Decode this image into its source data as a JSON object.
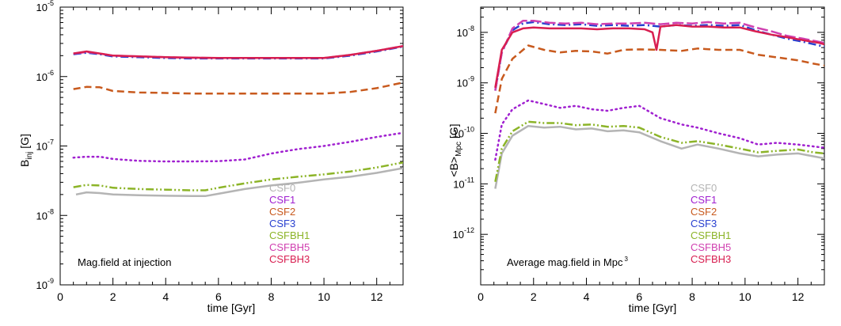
{
  "chart_data": [
    {
      "type": "line",
      "annotation": "Mag.field at injection",
      "xlabel": "time [Gyr]",
      "ylabel_main": "B",
      "ylabel_sub": "inj",
      "ylabel_unit": "[G]",
      "xlim": [
        0,
        13
      ],
      "ylim_log10": [
        -9,
        -5
      ],
      "xticks": [
        0,
        2,
        4,
        6,
        8,
        10,
        12
      ],
      "ytick_exponents": [
        -9,
        -8,
        -7,
        -6,
        -5
      ],
      "series": [
        {
          "name": "CSF0",
          "color": "#b4b4b4",
          "dash": "solid",
          "x": [
            0.6,
            1.0,
            1.5,
            2.0,
            3.0,
            4.0,
            5.0,
            5.5,
            6.0,
            7.0,
            8.0,
            9.0,
            10.0,
            11.0,
            12.0,
            13.0
          ],
          "y": [
            2e-08,
            2.15e-08,
            2.1e-08,
            2e-08,
            1.95e-08,
            1.92e-08,
            1.9e-08,
            1.9e-08,
            2.05e-08,
            2.4e-08,
            2.7e-08,
            2.95e-08,
            3.3e-08,
            3.6e-08,
            4.1e-08,
            4.8e-08
          ]
        },
        {
          "name": "CSF1",
          "color": "#a020d0",
          "dash": "dot",
          "x": [
            0.5,
            1.0,
            1.5,
            2.0,
            3.0,
            4.0,
            5.0,
            6.0,
            7.0,
            8.0,
            9.0,
            10.0,
            11.0,
            12.0,
            13.0
          ],
          "y": [
            6.8e-08,
            7e-08,
            7e-08,
            6.5e-08,
            6.1e-08,
            6e-08,
            6e-08,
            6.05e-08,
            6.4e-08,
            7.8e-08,
            9e-08,
            1e-07,
            1.15e-07,
            1.35e-07,
            1.55e-07
          ]
        },
        {
          "name": "CSF2",
          "color": "#c85a1e",
          "dash": "dash",
          "x": [
            0.5,
            1.0,
            1.5,
            2.0,
            3.0,
            4.0,
            5.0,
            6.0,
            7.0,
            8.0,
            9.0,
            10.0,
            11.0,
            12.0,
            13.0
          ],
          "y": [
            6.6e-07,
            7.1e-07,
            7e-07,
            6.2e-07,
            5.9e-07,
            5.8e-07,
            5.7e-07,
            5.7e-07,
            5.7e-07,
            5.7e-07,
            5.7e-07,
            5.7e-07,
            6e-07,
            6.8e-07,
            8.2e-07
          ]
        },
        {
          "name": "CSF3",
          "color": "#2840d0",
          "dash": "dashdot",
          "x": [
            0.5,
            1.0,
            1.5,
            2.0,
            3.0,
            4.0,
            5.0,
            6.0,
            7.0,
            8.0,
            9.0,
            10.0,
            11.0,
            12.0,
            13.0
          ],
          "y": [
            2.1e-06,
            2.2e-06,
            2.1e-06,
            1.95e-06,
            1.9e-06,
            1.85e-06,
            1.82e-06,
            1.82e-06,
            1.82e-06,
            1.82e-06,
            1.82e-06,
            1.82e-06,
            2e-06,
            2.3e-06,
            2.7e-06
          ]
        },
        {
          "name": "CSFBH1",
          "color": "#8cb428",
          "dash": "dashdotdot",
          "x": [
            0.5,
            1.0,
            1.5,
            2.0,
            3.0,
            4.0,
            5.0,
            5.5,
            6.0,
            7.0,
            8.0,
            9.0,
            10.0,
            11.0,
            12.0,
            13.0
          ],
          "y": [
            2.55e-08,
            2.75e-08,
            2.7e-08,
            2.5e-08,
            2.4e-08,
            2.35e-08,
            2.3e-08,
            2.3e-08,
            2.5e-08,
            2.9e-08,
            3.3e-08,
            3.6e-08,
            3.9e-08,
            4.3e-08,
            4.9e-08,
            5.8e-08
          ]
        },
        {
          "name": "CSFBH5",
          "color": "#d040b0",
          "dash": "longdash",
          "x": [
            0.5,
            1.0,
            1.5,
            2.0,
            3.0,
            4.0,
            5.0,
            6.0,
            7.0,
            8.0,
            9.0,
            10.0,
            11.0,
            12.0,
            13.0
          ],
          "y": [
            2.15e-06,
            2.25e-06,
            2.15e-06,
            2e-06,
            1.95e-06,
            1.9e-06,
            1.87e-06,
            1.85e-06,
            1.85e-06,
            1.85e-06,
            1.85e-06,
            1.85e-06,
            2.05e-06,
            2.35e-06,
            2.75e-06
          ]
        },
        {
          "name": "CSFBH3",
          "color": "#d81e50",
          "dash": "solid",
          "x": [
            0.5,
            1.0,
            1.5,
            2.0,
            3.0,
            4.0,
            5.0,
            6.0,
            7.0,
            8.0,
            9.0,
            10.0,
            11.0,
            12.0,
            13.0
          ],
          "y": [
            2.15e-06,
            2.3e-06,
            2.15e-06,
            2e-06,
            1.95e-06,
            1.9e-06,
            1.87e-06,
            1.85e-06,
            1.85e-06,
            1.85e-06,
            1.85e-06,
            1.85e-06,
            2.05e-06,
            2.35e-06,
            2.75e-06
          ]
        }
      ]
    },
    {
      "type": "line",
      "annotation": "Average mag.field in Mpc",
      "annotation_sup": "3",
      "xlabel": "time [Gyr]",
      "ylabel_main": "<B>",
      "ylabel_sub": "Mpc",
      "ylabel_unit": "[G]",
      "xlim": [
        0,
        13
      ],
      "ylim_log10": [
        -13,
        -7.5
      ],
      "xticks": [
        0,
        2,
        4,
        6,
        8,
        10,
        12
      ],
      "ytick_exponents": [
        -12,
        -11,
        -10,
        -9,
        -8
      ],
      "series": [
        {
          "name": "CSF0",
          "color": "#b4b4b4",
          "dash": "solid",
          "x": [
            0.55,
            0.8,
            1.2,
            1.8,
            2.4,
            3.0,
            3.6,
            4.2,
            4.8,
            5.4,
            6.0,
            6.8,
            7.6,
            8.2,
            9.0,
            9.8,
            10.5,
            11.2,
            12.0,
            12.6,
            13.0
          ],
          "y": [
            8e-12,
            4e-11,
            9e-11,
            1.4e-10,
            1.3e-10,
            1.35e-10,
            1.2e-10,
            1.25e-10,
            1.1e-10,
            1.15e-10,
            1.05e-10,
            7e-11,
            5e-11,
            6e-11,
            5e-11,
            4e-11,
            3.5e-11,
            3.8e-11,
            4e-11,
            3.5e-11,
            3.2e-11
          ]
        },
        {
          "name": "CSF1",
          "color": "#a020d0",
          "dash": "dot",
          "x": [
            0.55,
            0.8,
            1.2,
            1.8,
            2.4,
            3.0,
            3.6,
            4.2,
            4.8,
            5.4,
            6.0,
            6.8,
            7.6,
            8.2,
            9.0,
            9.8,
            10.5,
            11.2,
            12.0,
            12.6,
            13.0
          ],
          "y": [
            3e-11,
            1.5e-10,
            3e-10,
            4.5e-10,
            3.8e-10,
            3.2e-10,
            3.5e-10,
            3e-10,
            2.8e-10,
            3.2e-10,
            3.5e-10,
            2e-10,
            1.5e-10,
            1.3e-10,
            1e-10,
            8e-11,
            6e-11,
            6.5e-11,
            6e-11,
            5.5e-11,
            5.2e-11
          ]
        },
        {
          "name": "CSF2",
          "color": "#c85a1e",
          "dash": "dash",
          "x": [
            0.55,
            0.8,
            1.2,
            1.8,
            2.4,
            3.0,
            3.6,
            4.2,
            4.8,
            5.4,
            6.0,
            6.8,
            7.6,
            8.2,
            9.0,
            9.8,
            10.5,
            11.2,
            12.0,
            12.6,
            13.0
          ],
          "y": [
            2.5e-10,
            1.2e-09,
            3e-09,
            5.5e-09,
            4.5e-09,
            4e-09,
            4.3e-09,
            4.2e-09,
            3.8e-09,
            4.5e-09,
            4.6e-09,
            4.5e-09,
            4.3e-09,
            4.8e-09,
            4.5e-09,
            4.5e-09,
            3.6e-09,
            3.2e-09,
            2.8e-09,
            2.4e-09,
            2.2e-09
          ]
        },
        {
          "name": "CSF3",
          "color": "#2840d0",
          "dash": "dashdot",
          "x": [
            0.55,
            0.8,
            1.2,
            1.6,
            2.0,
            2.6,
            3.2,
            3.8,
            4.4,
            5.0,
            5.6,
            6.2,
            6.8,
            7.4,
            8.0,
            8.6,
            9.2,
            9.8,
            10.4,
            11.0,
            11.6,
            12.2,
            12.8,
            13.0
          ],
          "y": [
            7e-10,
            4e-09,
            1.1e-08,
            1.5e-08,
            1.6e-08,
            1.45e-08,
            1.4e-08,
            1.45e-08,
            1.35e-08,
            1.4e-08,
            1.35e-08,
            1.4e-08,
            1.3e-08,
            1.4e-08,
            1.35e-08,
            1.4e-08,
            1.35e-08,
            1.4e-08,
            1.1e-08,
            9e-09,
            7.5e-09,
            6.5e-09,
            5.5e-09,
            5.2e-09
          ]
        },
        {
          "name": "CSFBH1",
          "color": "#8cb428",
          "dash": "dashdotdot",
          "x": [
            0.55,
            0.8,
            1.2,
            1.8,
            2.4,
            3.0,
            3.6,
            4.2,
            4.8,
            5.4,
            6.0,
            6.8,
            7.6,
            8.2,
            9.0,
            9.8,
            10.5,
            11.2,
            12.0,
            12.6,
            13.0
          ],
          "y": [
            1.1e-11,
            5e-11,
            1.1e-10,
            1.7e-10,
            1.6e-10,
            1.6e-10,
            1.45e-10,
            1.5e-10,
            1.35e-10,
            1.4e-10,
            1.3e-10,
            8.5e-11,
            6.5e-11,
            7e-11,
            6e-11,
            5e-11,
            4.2e-11,
            4.5e-11,
            4.8e-11,
            4.2e-11,
            4e-11
          ]
        },
        {
          "name": "CSFBH5",
          "color": "#d040b0",
          "dash": "longdash",
          "x": [
            0.55,
            0.8,
            1.2,
            1.6,
            2.0,
            2.6,
            3.2,
            3.8,
            4.4,
            5.0,
            5.6,
            6.2,
            6.8,
            7.4,
            8.0,
            8.6,
            9.2,
            9.8,
            10.4,
            11.0,
            11.6,
            12.2,
            12.8,
            13.0
          ],
          "y": [
            7e-10,
            4e-09,
            1.2e-08,
            1.7e-08,
            1.7e-08,
            1.55e-08,
            1.5e-08,
            1.55e-08,
            1.45e-08,
            1.5e-08,
            1.5e-08,
            1.55e-08,
            1.45e-08,
            1.55e-08,
            1.5e-08,
            1.6e-08,
            1.5e-08,
            1.55e-08,
            1.25e-08,
            1.05e-08,
            8.5e-09,
            7.5e-09,
            6.5e-09,
            6.2e-09
          ]
        },
        {
          "name": "CSFBH3",
          "color": "#d81e50",
          "dash": "solid",
          "x": [
            0.55,
            0.8,
            1.2,
            1.6,
            2.0,
            2.6,
            3.2,
            3.8,
            4.4,
            5.0,
            5.6,
            6.2,
            6.5,
            6.65,
            6.8,
            7.4,
            8.0,
            8.6,
            9.2,
            9.8,
            10.4,
            11.0,
            11.6,
            12.2,
            12.8,
            13.0
          ],
          "y": [
            8e-10,
            4.5e-09,
            1e-08,
            1.2e-08,
            1.25e-08,
            1.2e-08,
            1.2e-08,
            1.2e-08,
            1.15e-08,
            1.2e-08,
            1.2e-08,
            1.15e-08,
            1e-08,
            4.5e-09,
            1.3e-08,
            1.4e-08,
            1.3e-08,
            1.3e-08,
            1.25e-08,
            1.25e-08,
            1.05e-08,
            9e-09,
            8e-09,
            7e-09,
            6.2e-09,
            5.8e-09
          ]
        }
      ]
    }
  ]
}
